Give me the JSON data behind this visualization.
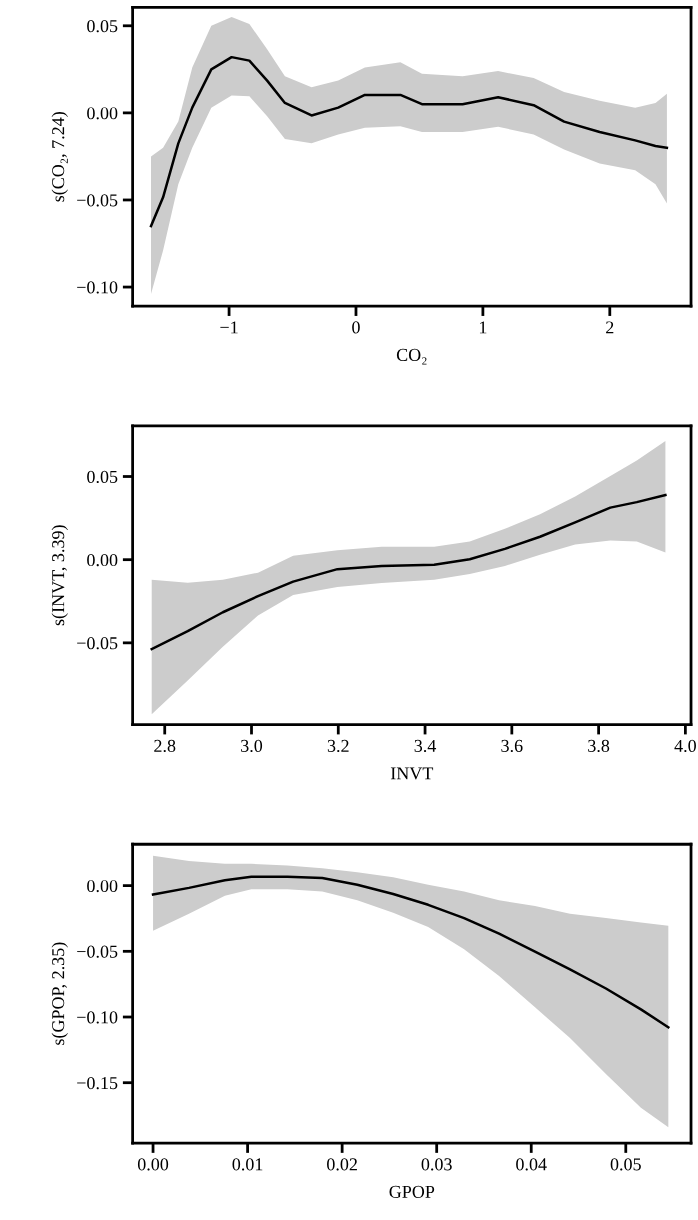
{
  "chart_data": [
    {
      "type": "line",
      "xlabel": "CO₂",
      "ylabel": "s(CO₂, 7.24)",
      "xlim": [
        -1.76,
        2.64
      ],
      "ylim": [
        -0.111,
        0.0606
      ],
      "xticks": [
        {
          "value": -1,
          "label": "−1"
        },
        0,
        1,
        2
      ],
      "yticks": [
        {
          "value": -0.1,
          "label": "−0.10"
        },
        {
          "value": -0.05,
          "label": "−0.05"
        },
        {
          "value": 0,
          "label": "0.00"
        },
        0.05
      ],
      "grid": false,
      "legend": false,
      "series": [
        {
          "color": "#000000",
          "x": [
            -1.615,
            -1.52,
            -1.4,
            -1.29,
            -1.14,
            -0.98,
            -0.84,
            -0.7,
            -0.56,
            -0.35,
            -0.14,
            0.07,
            0.35,
            0.52,
            0.84,
            1.12,
            1.4,
            1.64,
            1.92,
            2.2,
            2.36,
            2.45
          ],
          "values": [
            -0.065,
            -0.0485,
            -0.0175,
            0.003,
            0.025,
            0.032,
            0.03,
            0.0185,
            0.0057,
            -0.0015,
            0.003,
            0.0103,
            0.0103,
            0.005,
            0.005,
            0.009,
            0.0044,
            -0.005,
            -0.011,
            -0.0158,
            -0.019,
            -0.02
          ],
          "lower": [
            -0.104,
            -0.079,
            -0.041,
            -0.02,
            0.003,
            0.01,
            0.0095,
            -0.002,
            -0.015,
            -0.0175,
            -0.0124,
            -0.0085,
            -0.0077,
            -0.011,
            -0.011,
            -0.008,
            -0.0124,
            -0.021,
            -0.029,
            -0.033,
            -0.041,
            -0.052
          ],
          "upper": [
            -0.025,
            -0.02,
            -0.005,
            0.026,
            0.05,
            0.055,
            0.051,
            0.0365,
            0.021,
            0.0147,
            0.0186,
            0.026,
            0.029,
            0.0225,
            0.021,
            0.024,
            0.02,
            0.012,
            0.007,
            0.003,
            0.0057,
            0.011
          ]
        }
      ]
    },
    {
      "type": "line",
      "xlabel": "INVT",
      "ylabel": "s(INVT, 3.39)",
      "xlim": [
        2.726,
        4.013
      ],
      "ylim": [
        -0.0992,
        0.0805
      ],
      "xticks": [
        2.8,
        {
          "value": 3,
          "label": "3.0"
        },
        3.2,
        3.4,
        3.6,
        3.8,
        {
          "value": 4,
          "label": "4.0"
        }
      ],
      "yticks": [
        {
          "value": -0.05,
          "label": "−0.05"
        },
        {
          "value": 0,
          "label": "0.00"
        },
        0.05
      ],
      "grid": false,
      "legend": false,
      "series": [
        {
          "color": "#000000",
          "x": [
            2.77,
            2.853,
            2.934,
            3.015,
            3.096,
            3.198,
            3.3,
            3.421,
            3.503,
            3.584,
            3.665,
            3.746,
            3.827,
            3.888,
            3.954
          ],
          "values": [
            -0.0538,
            -0.043,
            -0.0316,
            -0.0219,
            -0.0132,
            -0.0057,
            -0.0038,
            -0.003,
            0.0003,
            0.0065,
            0.0138,
            0.0224,
            0.0313,
            0.0346,
            0.0389
          ],
          "lower": [
            -0.093,
            -0.0727,
            -0.0524,
            -0.0335,
            -0.0213,
            -0.0165,
            -0.014,
            -0.012,
            -0.0086,
            -0.0038,
            0.003,
            0.0092,
            0.0116,
            0.011,
            0.0043
          ],
          "upper": [
            -0.012,
            -0.0138,
            -0.012,
            -0.0078,
            0.0024,
            0.0057,
            0.0078,
            0.0078,
            0.011,
            0.0186,
            0.0273,
            0.038,
            0.0503,
            0.0597,
            0.0714
          ]
        }
      ]
    },
    {
      "type": "line",
      "xlabel": "GPOP",
      "ylabel": "s(GPOP, 2.35)",
      "xlim": [
        -0.00216,
        0.0569
      ],
      "ylim": [
        -0.196,
        0.0315
      ],
      "xticks": [
        {
          "value": 0,
          "label": "0.00"
        },
        0.01,
        0.02,
        0.03,
        0.04,
        0.05
      ],
      "yticks": [
        {
          "value": -0.15,
          "label": "−0.15"
        },
        {
          "value": -0.1,
          "label": "−0.10"
        },
        {
          "value": -0.05,
          "label": "−0.05"
        },
        {
          "value": 0,
          "label": "0.00"
        }
      ],
      "grid": false,
      "legend": false,
      "series": [
        {
          "color": "#000000",
          "x": [
            0.0,
            0.0038,
            0.0076,
            0.0104,
            0.0142,
            0.0179,
            0.0216,
            0.0254,
            0.0291,
            0.0329,
            0.0366,
            0.0404,
            0.0441,
            0.0479,
            0.0516,
            0.0545
          ],
          "values": [
            -0.0068,
            -0.0017,
            0.0041,
            0.0068,
            0.0068,
            0.0058,
            0.0007,
            -0.0064,
            -0.0146,
            -0.0247,
            -0.0366,
            -0.0502,
            -0.0637,
            -0.0783,
            -0.0942,
            -0.1078
          ],
          "lower": [
            -0.0343,
            -0.0214,
            -0.0078,
            -0.0027,
            -0.0027,
            -0.0044,
            -0.0112,
            -0.0207,
            -0.0315,
            -0.0485,
            -0.0688,
            -0.0926,
            -0.116,
            -0.1434,
            -0.169,
            -0.184
          ],
          "upper": [
            0.0227,
            0.0187,
            0.0166,
            0.0166,
            0.0153,
            0.0132,
            0.0102,
            0.0064,
            0.0007,
            -0.0044,
            -0.0112,
            -0.0156,
            -0.0214,
            -0.0247,
            -0.0281,
            -0.0305
          ]
        }
      ]
    }
  ]
}
